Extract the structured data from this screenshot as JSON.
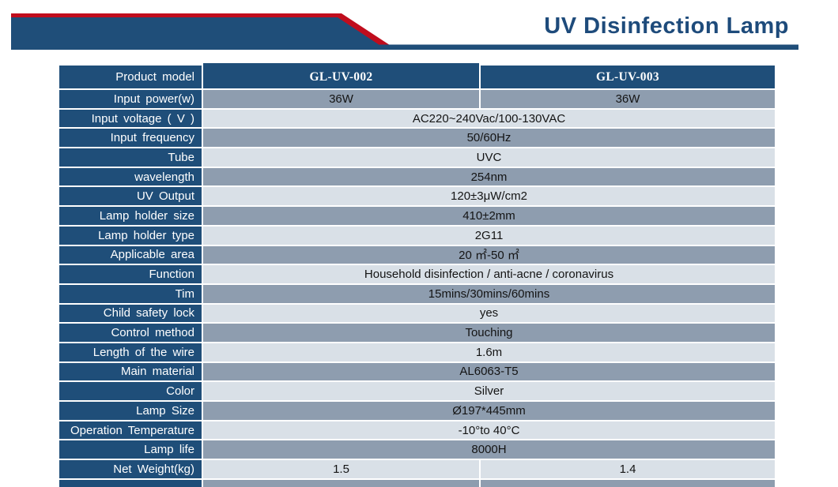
{
  "page_title": "UV Disinfection Lamp",
  "colors": {
    "banner_blue": "#1F4E79",
    "banner_red": "#C00D1D",
    "title_blue": "#1E4B7B",
    "label_cell_blue": "#1F4E79",
    "row_medium": "#8E9DAF",
    "row_light": "#D9E0E7",
    "value_text": "#141414"
  },
  "table": {
    "header": {
      "label": "Product model",
      "columns": [
        "GL-UV-002",
        "GL-UV-003"
      ]
    },
    "rows": [
      {
        "label": "Input power(w)",
        "values": [
          "36W",
          "36W"
        ],
        "merged": false,
        "shade": "medium"
      },
      {
        "label": "Input voltage ( V )",
        "values": [
          "AC220~240Vac/100-130VAC"
        ],
        "merged": true,
        "shade": "light"
      },
      {
        "label": "Input frequency",
        "values": [
          "50/60Hz"
        ],
        "merged": true,
        "shade": "medium"
      },
      {
        "label": "Tube",
        "values": [
          "UVC"
        ],
        "merged": true,
        "shade": "light"
      },
      {
        "label": "wavelength",
        "values": [
          "254nm"
        ],
        "merged": true,
        "shade": "medium"
      },
      {
        "label": "UV Output",
        "values": [
          "120±3μW/cm2"
        ],
        "merged": true,
        "shade": "light"
      },
      {
        "label": "Lamp holder size",
        "values": [
          "410±2mm"
        ],
        "merged": true,
        "shade": "medium"
      },
      {
        "label": "Lamp holder type",
        "values": [
          "2G11"
        ],
        "merged": true,
        "shade": "light"
      },
      {
        "label": "Applicable area",
        "values": [
          "20 ㎡-50 ㎡"
        ],
        "merged": true,
        "shade": "medium"
      },
      {
        "label": "Function",
        "values": [
          "Household disinfection / anti-acne / coronavirus"
        ],
        "merged": true,
        "shade": "light"
      },
      {
        "label": "Tim",
        "values": [
          "15mins/30mins/60mins"
        ],
        "merged": true,
        "shade": "medium"
      },
      {
        "label": "Child safety lock",
        "values": [
          "yes"
        ],
        "merged": true,
        "shade": "light"
      },
      {
        "label": "Control method",
        "values": [
          "Touching"
        ],
        "merged": true,
        "shade": "medium"
      },
      {
        "label": "Length of the wire",
        "values": [
          "1.6m"
        ],
        "merged": true,
        "shade": "light"
      },
      {
        "label": "Main material",
        "values": [
          "AL6063-T5"
        ],
        "merged": true,
        "shade": "medium"
      },
      {
        "label": "Color",
        "values": [
          "Silver"
        ],
        "merged": true,
        "shade": "light"
      },
      {
        "label": "Lamp Size",
        "values": [
          "Ø197*445mm"
        ],
        "merged": true,
        "shade": "medium"
      },
      {
        "label": "Operation Temperature",
        "values": [
          "-10°to 40°C"
        ],
        "merged": true,
        "shade": "light"
      },
      {
        "label": "Lamp life",
        "values": [
          "8000H"
        ],
        "merged": true,
        "shade": "medium"
      },
      {
        "label": "Net Weight(kg)",
        "values": [
          "1.5",
          "1.4"
        ],
        "merged": false,
        "shade": "light"
      },
      {
        "label": "",
        "values": [
          "",
          ""
        ],
        "merged": false,
        "shade": "medium",
        "partial": true
      }
    ]
  }
}
